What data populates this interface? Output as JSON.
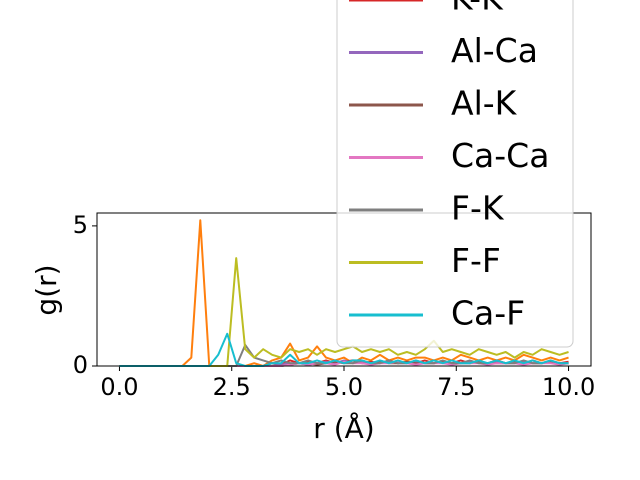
{
  "chart_data": {
    "type": "line",
    "x_label": "r (Å)",
    "y_label": "g(r)",
    "x": [
      0,
      0.2,
      0.4,
      0.6,
      0.8,
      1,
      1.2,
      1.4,
      1.6,
      1.8,
      2,
      2.2,
      2.4,
      2.6,
      2.8,
      3,
      3.2,
      3.4,
      3.6,
      3.8,
      4,
      4.2,
      4.4,
      4.6,
      4.8,
      5,
      5.2,
      5.4,
      5.6,
      5.8,
      6,
      6.2,
      6.4,
      6.6,
      6.8,
      7,
      7.2,
      7.4,
      7.6,
      7.8,
      8,
      8.2,
      8.4,
      8.6,
      8.8,
      9,
      9.2,
      9.4,
      9.6,
      9.8,
      10
    ],
    "series": [
      {
        "color": "#ff7f0e",
        "values": [
          0,
          0,
          0,
          0,
          0,
          0,
          0,
          0,
          0.3,
          5.2,
          0,
          0,
          0,
          0,
          0,
          0.1,
          0,
          0.2,
          0.3,
          0.8,
          0.2,
          0.3,
          0.7,
          0.3,
          0.2,
          0.3,
          0.1,
          0.3,
          0.2,
          0.4,
          0.2,
          0.3,
          0.2,
          0.3,
          0.3,
          0.2,
          0.3,
          0.2,
          0.4,
          0.3,
          0.2,
          0.3,
          0.2,
          0.3,
          0.2,
          0.4,
          0.3,
          0.2,
          0.3,
          0.2,
          0.3
        ]
      },
      {
        "name": "K-K",
        "color": "#d62728",
        "values": [
          0,
          0,
          0,
          0,
          0,
          0,
          0,
          0,
          0,
          0,
          0,
          0,
          0,
          0,
          0,
          0,
          0,
          0.1,
          0.05,
          0.2,
          0.1,
          0.15,
          0.1,
          0.2,
          0.1,
          0.15,
          0.2,
          0.1,
          0.15,
          0.1,
          0.2,
          0.1,
          0.15,
          0.1,
          0.2,
          0.1,
          0.15,
          0.1,
          0.2,
          0.1,
          0.15,
          0.1,
          0.2,
          0.1,
          0.15,
          0.1,
          0.2,
          0.1,
          0.15,
          0.1,
          0.15
        ]
      },
      {
        "name": "Al-Ca",
        "color": "#9467bd",
        "values": [
          0,
          0,
          0,
          0,
          0,
          0,
          0,
          0,
          0,
          0,
          0,
          0,
          0,
          0,
          0,
          0,
          0,
          0,
          0.05,
          0.1,
          0.1,
          0.05,
          0.1,
          0.15,
          0.1,
          0.2,
          0.1,
          0.15,
          0.1,
          0.1,
          0.15,
          0.1,
          0.1,
          0.15,
          0.1,
          0.1,
          0.15,
          0.1,
          0.1,
          0.15,
          0.1,
          0.1,
          0.15,
          0.1,
          0.1,
          0.15,
          0.1,
          0.1,
          0.15,
          0.1,
          0.1
        ]
      },
      {
        "name": "Al-K",
        "color": "#8c564b",
        "values": [
          0,
          0,
          0,
          0,
          0,
          0,
          0,
          0,
          0,
          0,
          0,
          0,
          0,
          0,
          0,
          0,
          0,
          0,
          0,
          0.05,
          0.1,
          0.1,
          0.05,
          0.1,
          0.15,
          0.1,
          0.2,
          0.1,
          0.1,
          0.15,
          0.1,
          0.1,
          0.15,
          0.1,
          0.1,
          0.1,
          0.15,
          0.1,
          0.1,
          0.1,
          0.15,
          0.1,
          0.1,
          0.1,
          0.15,
          0.1,
          0.1,
          0.1,
          0.15,
          0.1,
          0.1
        ]
      },
      {
        "name": "Ca-Ca",
        "color": "#e377c2",
        "values": [
          0,
          0,
          0,
          0,
          0,
          0,
          0,
          0,
          0,
          0,
          0,
          0,
          0,
          0,
          0,
          0,
          0,
          0,
          0,
          0.05,
          0.1,
          0.05,
          0.1,
          0.1,
          0.05,
          0.15,
          0.1,
          0.1,
          0.05,
          0.1,
          0.1,
          0.15,
          0.1,
          0.05,
          0.1,
          0.1,
          0.1,
          0.05,
          0.1,
          0.1,
          0.1,
          0.05,
          0.1,
          0.1,
          0.1,
          0.05,
          0.1,
          0.1,
          0.1,
          0.05,
          0.1
        ]
      },
      {
        "name": "F-K",
        "color": "#7f7f7f",
        "values": [
          0,
          0,
          0,
          0,
          0,
          0,
          0,
          0,
          0,
          0,
          0,
          0,
          0,
          0,
          0.75,
          0.3,
          0.2,
          0.1,
          0.2,
          0.1,
          0.1,
          0.2,
          0.1,
          0.1,
          0.2,
          0.1,
          0.1,
          0.2,
          0.1,
          0.1,
          0.2,
          0.1,
          0.1,
          0.2,
          0.1,
          0.1,
          0.2,
          0.1,
          0.1,
          0.2,
          0.1,
          0.1,
          0.2,
          0.1,
          0.1,
          0.2,
          0.1,
          0.1,
          0.2,
          0.1,
          0.1
        ]
      },
      {
        "name": "F-F",
        "color": "#bcbd22",
        "values": [
          0,
          0,
          0,
          0,
          0,
          0,
          0,
          0,
          0,
          0,
          0,
          0,
          0,
          3.85,
          0.6,
          0.3,
          0.6,
          0.4,
          0.3,
          0.6,
          0.5,
          0.6,
          0.4,
          0.6,
          0.5,
          0.6,
          0.7,
          0.5,
          0.6,
          0.5,
          0.6,
          0.4,
          0.5,
          0.4,
          0.6,
          0.9,
          0.5,
          0.6,
          0.5,
          0.4,
          0.6,
          0.5,
          0.4,
          0.5,
          0.3,
          0.5,
          0.4,
          0.6,
          0.5,
          0.4,
          0.5
        ]
      },
      {
        "name": "Ca-F",
        "color": "#17becf",
        "values": [
          0,
          0,
          0,
          0,
          0,
          0,
          0,
          0,
          0,
          0,
          0,
          0.4,
          1.15,
          0.1,
          0,
          0,
          0,
          0.1,
          0.1,
          0.4,
          0.1,
          0.1,
          0.2,
          0.1,
          0.2,
          0.1,
          0.2,
          0.2,
          0.1,
          0.2,
          0.1,
          0.2,
          0.1,
          0.2,
          0.1,
          0.2,
          0.1,
          0.2,
          0.1,
          0.1,
          0.2,
          0.1,
          0.2,
          0.1,
          0.2,
          0.1,
          0.2,
          0.1,
          0.2,
          0.1,
          0.1
        ]
      }
    ],
    "xlim": [
      -0.5,
      10.5
    ],
    "ylim": [
      0,
      5.46
    ],
    "xticks": [
      {
        "value": 0,
        "label": "0.0"
      },
      2.5,
      {
        "value": 5,
        "label": "5.0"
      },
      7.5,
      {
        "value": 10,
        "label": "10.0"
      }
    ],
    "yticks": [
      0,
      5
    ],
    "grid": false,
    "legend": "upper right"
  }
}
